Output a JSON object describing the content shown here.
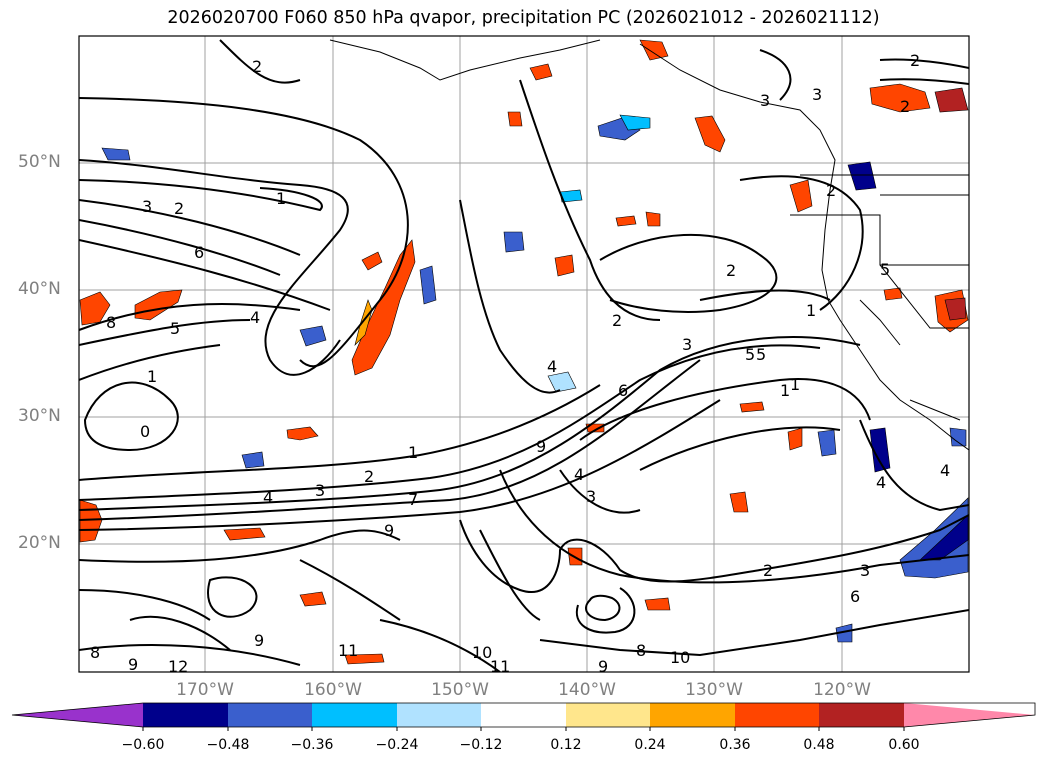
{
  "title": "2026020700 F060 850 hPa qvapor, precipitation PC (2026021012 - 2026021112)",
  "lat_labels": [
    "50°N",
    "40°N",
    "30°N",
    "20°N"
  ],
  "lon_labels": [
    "170°W",
    "160°W",
    "150°W",
    "140°W",
    "130°W",
    "120°W"
  ],
  "colorbar": {
    "ticks": [
      "−0.60",
      "−0.48",
      "−0.36",
      "−0.24",
      "−0.12",
      "0.12",
      "0.24",
      "0.36",
      "0.48",
      "0.60"
    ],
    "colors": [
      "#9932cc",
      "#00008b",
      "#3a5fcd",
      "#00bfff",
      "#b0e2ff",
      "#ffffff",
      "#ffe68c",
      "#ffa500",
      "#ff4500",
      "#b22222",
      "#ff88aa"
    ]
  },
  "contour_labels": [
    "2",
    "3",
    "2",
    "1",
    "6",
    "4",
    "5",
    "1",
    "0",
    "1",
    "2",
    "4",
    "3",
    "7",
    "9",
    "1",
    "2",
    "3",
    "5",
    "6",
    "4",
    "9",
    "4",
    "3",
    "2",
    "3",
    "6",
    "2",
    "4",
    "5",
    "1",
    "2",
    "1",
    "4",
    "2",
    "8",
    "10",
    "11",
    "10",
    "9",
    "11",
    "12",
    "8",
    "9",
    "9",
    "8",
    "5",
    "3",
    "2",
    "3"
  ]
}
